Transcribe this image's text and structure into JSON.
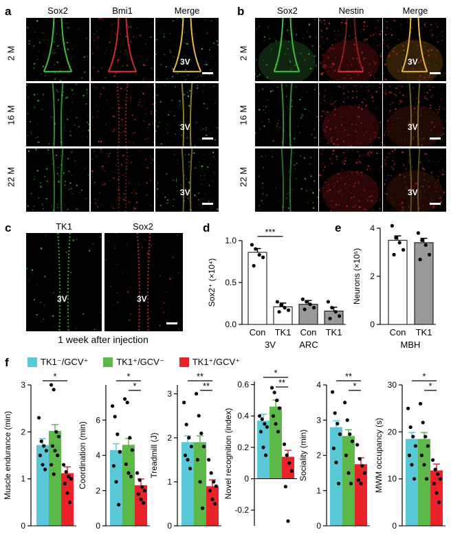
{
  "panel_a": {
    "label": "a",
    "channels": [
      "Sox2",
      "Bmi1",
      "Merge"
    ],
    "rows": [
      "2 M",
      "16 M",
      "22 M"
    ],
    "ventricle": "3V"
  },
  "panel_b": {
    "label": "b",
    "channels": [
      "Sox2",
      "Nestin",
      "Merge"
    ],
    "rows": [
      "2 M",
      "16 M",
      "22 M"
    ],
    "ventricle": "3V"
  },
  "panel_c": {
    "label": "c",
    "channels": [
      "TK1",
      "Sox2"
    ],
    "ventricle": "3V",
    "caption": "1 week after injection"
  },
  "panel_f": {
    "label": "f",
    "legend": [
      {
        "name": "TK1⁻/GCV⁺",
        "color": "#5bc8d8"
      },
      {
        "name": "TK1⁺/GCV⁻",
        "color": "#5db84a"
      },
      {
        "name": "TK1⁺/GCV⁺",
        "color": "#e8232a"
      }
    ]
  },
  "chart_data": [
    {
      "id": "d",
      "label": "d",
      "type": "bar",
      "ylabel": "Sox2⁺ (×10⁴)",
      "ylim": [
        0,
        1.0
      ],
      "yticks": [
        "0.0",
        "0.5",
        "1.0"
      ],
      "categories": [
        "Con",
        "TK1",
        "Con",
        "TK1"
      ],
      "groups": [
        "3V",
        "ARC"
      ],
      "values": [
        0.86,
        0.21,
        0.24,
        0.16
      ],
      "colors": [
        "#ffffff",
        "#ffffff",
        "#999999",
        "#999999"
      ],
      "significance": [
        "***"
      ],
      "points": [
        [
          0.95,
          0.9,
          0.83,
          0.8,
          0.7
        ],
        [
          0.27,
          0.23,
          0.2,
          0.17,
          0.15
        ],
        [
          0.3,
          0.27,
          0.24,
          0.2,
          0.18
        ],
        [
          0.27,
          0.2,
          0.15,
          0.1,
          0.07
        ]
      ]
    },
    {
      "id": "e",
      "label": "e",
      "type": "bar",
      "ylabel": "Neurons (×10⁵)",
      "ylim": [
        0,
        4
      ],
      "yticks": [
        "0",
        "2",
        "4"
      ],
      "categories": [
        "Con",
        "TK1"
      ],
      "groups": [
        "MBH"
      ],
      "values": [
        3.5,
        3.4
      ],
      "colors": [
        "#ffffff",
        "#999999"
      ],
      "points": [
        [
          4.1,
          3.6,
          3.4,
          3.1,
          2.9
        ],
        [
          3.8,
          3.5,
          3.3,
          2.9,
          2.7
        ]
      ]
    },
    {
      "id": "f1",
      "type": "bar",
      "ylabel": "Muscle endurance (min)",
      "ylim": [
        0,
        3
      ],
      "yticks": [
        "0",
        "1",
        "2",
        "3"
      ],
      "values": [
        1.72,
        2.02,
        1.12
      ],
      "significance": [
        "*"
      ],
      "points": [
        [
          2.3,
          1.8,
          1.7,
          1.6,
          1.5,
          1.3,
          1.2
        ],
        [
          3.0,
          2.9,
          2.0,
          1.9,
          1.7,
          1.6,
          1.5,
          1.3,
          1.1
        ],
        [
          1.3,
          1.15,
          1.05,
          1.0,
          0.9,
          0.7,
          0.5
        ]
      ]
    },
    {
      "id": "f2",
      "type": "bar",
      "ylabel": "Coordination (min)",
      "ylim": [
        0,
        8
      ],
      "yticks": [
        "0",
        "2",
        "4",
        "6"
      ],
      "values": [
        4.3,
        4.6,
        2.3
      ],
      "significance": [
        "*",
        "*"
      ],
      "points": [
        [
          6.8,
          6.2,
          5.2,
          4.2,
          3.4,
          2.5,
          1.2
        ],
        [
          7.2,
          7.0,
          5.0,
          4.3,
          3.5,
          3.0,
          2.8
        ],
        [
          3.0,
          2.6,
          2.2,
          2.0,
          1.8,
          1.5,
          1.3
        ]
      ]
    },
    {
      "id": "f3",
      "type": "bar",
      "ylabel": "Treadmill (J)",
      "ylim": [
        0,
        3.2
      ],
      "yticks": [
        "0",
        "1",
        "2",
        "3"
      ],
      "values": [
        1.9,
        1.9,
        0.9
      ],
      "significance": [
        "**",
        "**"
      ],
      "points": [
        [
          2.8,
          2.3,
          2.0,
          1.8,
          1.6,
          1.5,
          1.3
        ],
        [
          3.0,
          2.5,
          2.1,
          1.8,
          1.5,
          1.0,
          0.4
        ],
        [
          1.5,
          1.2,
          1.0,
          0.9,
          0.8,
          0.6,
          0.5
        ]
      ]
    },
    {
      "id": "f4",
      "type": "bar",
      "ylabel": "Novel recognition (index)",
      "ylim": [
        -0.3,
        0.62
      ],
      "yticks": [
        "-0.2",
        "0",
        "0.2",
        "0.4",
        "0.6"
      ],
      "values": [
        0.37,
        0.46,
        0.14
      ],
      "significance": [
        "*",
        "**"
      ],
      "points": [
        [
          0.4,
          0.38,
          0.35,
          0.33,
          0.3,
          0.2,
          0.15
        ],
        [
          0.58,
          0.55,
          0.5,
          0.45,
          0.4,
          0.35,
          0.3
        ],
        [
          0.22,
          0.15,
          0.1,
          0.05,
          -0.05,
          -0.27
        ]
      ]
    },
    {
      "id": "f5",
      "type": "bar",
      "ylabel": "Sociality (min)",
      "ylim": [
        0,
        4
      ],
      "yticks": [
        "0",
        "1",
        "2",
        "3",
        "4"
      ],
      "values": [
        2.8,
        2.55,
        1.75
      ],
      "significance": [
        "**",
        "*"
      ],
      "points": [
        [
          3.8,
          3.2,
          2.9,
          2.6,
          2.2,
          1.8,
          1.2
        ],
        [
          3.5,
          3.0,
          2.6,
          2.4,
          2.0,
          1.5,
          1.2
        ],
        [
          2.3,
          1.9,
          1.7,
          1.5,
          1.3,
          1.2
        ]
      ]
    },
    {
      "id": "f6",
      "type": "bar",
      "ylabel": "MWM occupancy (s)",
      "ylim": [
        0,
        30
      ],
      "yticks": [
        "0",
        "10",
        "20",
        "30"
      ],
      "values": [
        18.5,
        18.5,
        11.8
      ],
      "significance": [
        "*",
        "*"
      ],
      "points": [
        [
          25,
          21,
          19,
          17,
          15,
          13,
          10
        ],
        [
          26,
          22,
          19,
          17,
          15,
          13,
          10
        ],
        [
          14,
          12,
          11,
          10,
          9,
          7,
          5
        ]
      ]
    }
  ]
}
